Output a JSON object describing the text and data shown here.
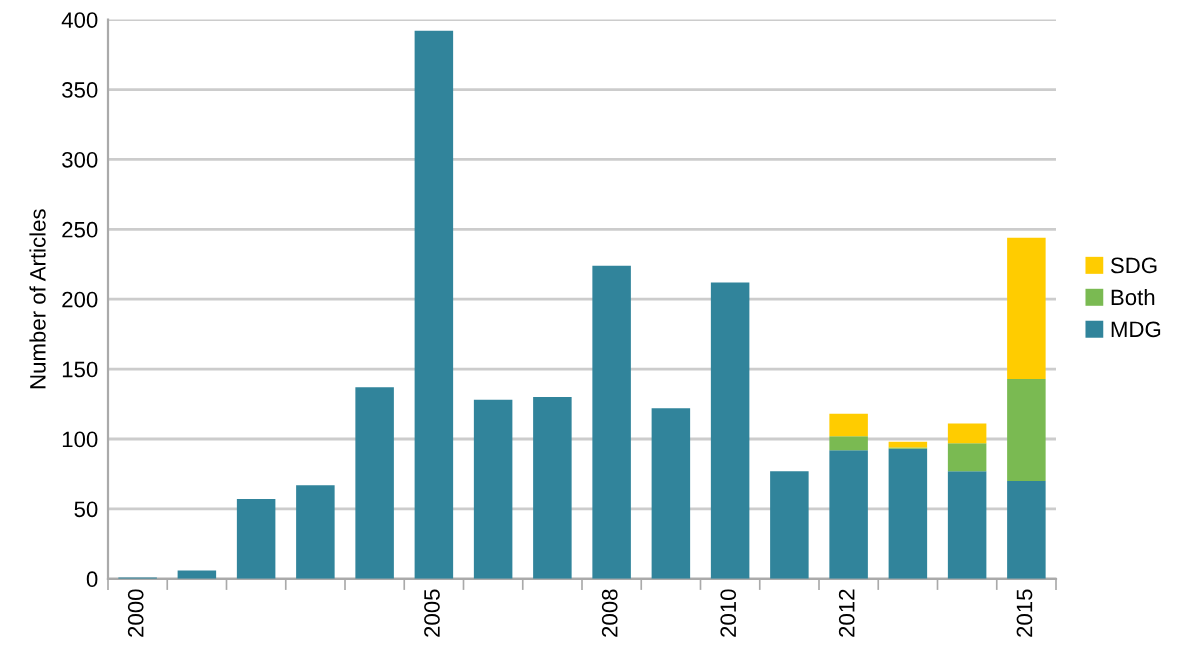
{
  "chart_data": {
    "type": "bar",
    "stacked": true,
    "ylabel": "Number of Articles",
    "categories": [
      "2000",
      null,
      null,
      null,
      null,
      "2005",
      null,
      null,
      "2008",
      null,
      "2010",
      null,
      "2012",
      null,
      null,
      "2015"
    ],
    "series": [
      {
        "name": "MDG",
        "color": "#31849b",
        "values": [
          1,
          6,
          57,
          67,
          137,
          392,
          128,
          130,
          224,
          122,
          212,
          77,
          92,
          93,
          77,
          70
        ]
      },
      {
        "name": "Both",
        "color": "#7aba52",
        "values": [
          0,
          0,
          0,
          0,
          0,
          0,
          0,
          0,
          0,
          0,
          0,
          0,
          10,
          1,
          20,
          73
        ]
      },
      {
        "name": "SDG",
        "color": "#ffcc00",
        "values": [
          0,
          0,
          0,
          0,
          0,
          0,
          0,
          0,
          0,
          0,
          0,
          0,
          16,
          4,
          14,
          101
        ]
      }
    ],
    "ylim": [
      0,
      400
    ],
    "yticks": [
      0,
      50,
      100,
      150,
      200,
      250,
      300,
      350,
      400
    ],
    "grid": "y",
    "legend": "right"
  }
}
